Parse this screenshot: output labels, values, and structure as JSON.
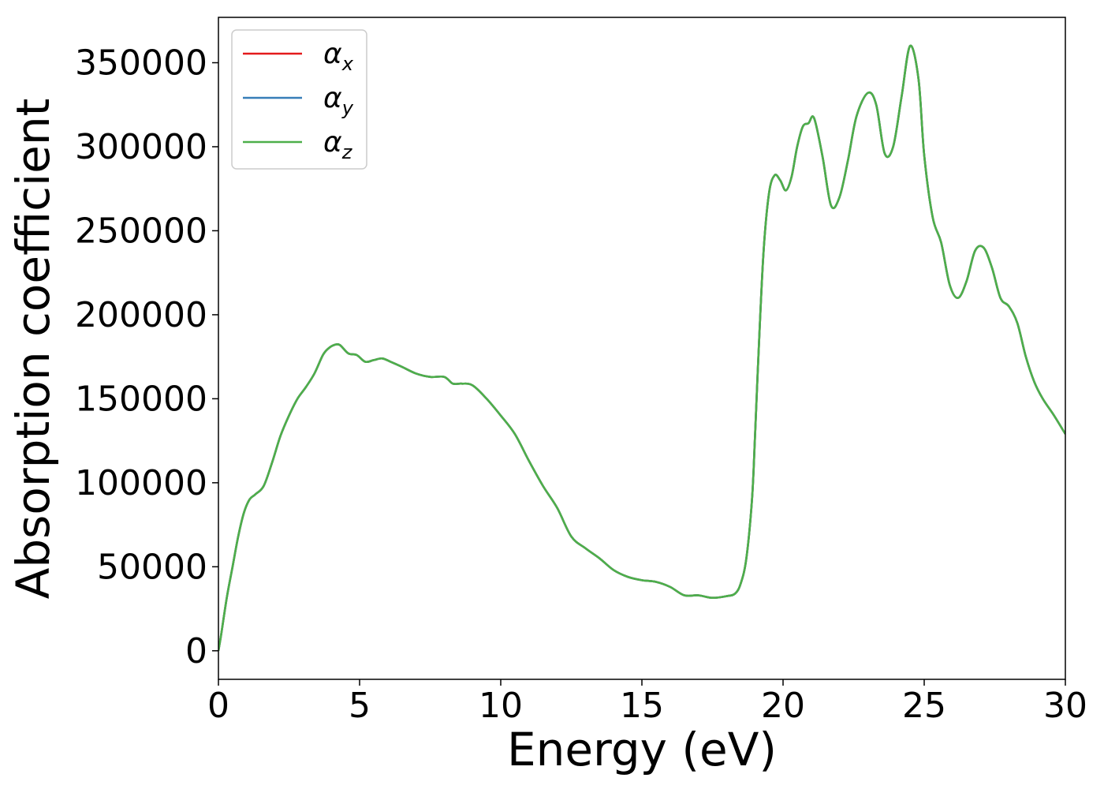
{
  "chart_data": {
    "type": "line",
    "xlabel": "Energy (eV)",
    "ylabel": "Absorption coefficient",
    "xlim": [
      0,
      30
    ],
    "ylim": [
      -17000,
      377000
    ],
    "xticks": [
      0,
      5,
      10,
      15,
      20,
      25,
      30
    ],
    "yticks": [
      0,
      50000,
      100000,
      150000,
      200000,
      250000,
      300000,
      350000
    ],
    "grid": false,
    "legend_position": "top-left",
    "x": [
      0,
      0.1,
      0.3,
      0.5,
      0.7,
      0.9,
      1.1,
      1.3,
      1.6,
      1.9,
      2.2,
      2.5,
      2.8,
      3.1,
      3.4,
      3.7,
      3.9,
      4.1,
      4.3,
      4.6,
      4.9,
      5.2,
      5.5,
      5.8,
      6.1,
      6.5,
      7.0,
      7.5,
      8.0,
      8.3,
      8.6,
      9.0,
      9.5,
      10.0,
      10.5,
      11.0,
      11.5,
      12.0,
      12.5,
      13.0,
      13.5,
      14.0,
      14.5,
      15.0,
      15.5,
      16.0,
      16.5,
      17.0,
      17.5,
      18.0,
      18.3,
      18.5,
      18.7,
      18.9,
      19.0,
      19.1,
      19.3,
      19.5,
      19.7,
      19.9,
      20.1,
      20.3,
      20.5,
      20.7,
      20.9,
      21.1,
      21.4,
      21.7,
      22.0,
      22.3,
      22.6,
      23.0,
      23.3,
      23.6,
      23.9,
      24.2,
      24.5,
      24.8,
      25.0,
      25.3,
      25.6,
      25.9,
      26.2,
      26.5,
      26.8,
      27.1,
      27.4,
      27.7,
      28.0,
      28.3,
      28.6,
      28.9,
      29.2,
      29.6,
      30.0
    ],
    "series": [
      {
        "name": "αx",
        "label_base": "α",
        "label_sub": "x",
        "color": "#e41a1c",
        "values": [
          0,
          10000,
          32000,
          50000,
          68000,
          82000,
          90000,
          93000,
          98000,
          112000,
          128000,
          140000,
          150000,
          157000,
          165000,
          176000,
          180000,
          182000,
          182000,
          177000,
          176000,
          172000,
          173000,
          174000,
          172000,
          169000,
          165000,
          163000,
          163000,
          159000,
          159000,
          158000,
          150000,
          140000,
          129000,
          113000,
          98000,
          85000,
          68000,
          61000,
          55000,
          48000,
          44000,
          42000,
          41000,
          38000,
          33000,
          33000,
          31500,
          32500,
          34000,
          40000,
          55000,
          90000,
          125000,
          165000,
          235000,
          272000,
          283000,
          280000,
          274000,
          282000,
          300000,
          312000,
          314000,
          317000,
          294000,
          265000,
          270000,
          292000,
          318000,
          332000,
          325000,
          296000,
          300000,
          330000,
          360000,
          340000,
          295000,
          258000,
          243000,
          218000,
          210000,
          220000,
          238000,
          240000,
          228000,
          210000,
          205000,
          195000,
          175000,
          160000,
          150000,
          140000,
          129000
        ]
      },
      {
        "name": "αy",
        "label_base": "α",
        "label_sub": "y",
        "color": "#377eb8",
        "values": [
          0,
          10000,
          32000,
          50000,
          68000,
          82000,
          90000,
          93000,
          98000,
          112000,
          128000,
          140000,
          150000,
          157000,
          165000,
          176000,
          180000,
          182000,
          182000,
          177000,
          176000,
          172000,
          173000,
          174000,
          172000,
          169000,
          165000,
          163000,
          163000,
          159000,
          159000,
          158000,
          150000,
          140000,
          129000,
          113000,
          98000,
          85000,
          68000,
          61000,
          55000,
          48000,
          44000,
          42000,
          41000,
          38000,
          33000,
          33000,
          31500,
          32500,
          34000,
          40000,
          55000,
          90000,
          125000,
          165000,
          235000,
          272000,
          283000,
          280000,
          274000,
          282000,
          300000,
          312000,
          314000,
          317000,
          294000,
          265000,
          270000,
          292000,
          318000,
          332000,
          325000,
          296000,
          300000,
          330000,
          360000,
          340000,
          295000,
          258000,
          243000,
          218000,
          210000,
          220000,
          238000,
          240000,
          228000,
          210000,
          205000,
          195000,
          175000,
          160000,
          150000,
          140000,
          129000
        ]
      },
      {
        "name": "αz",
        "label_base": "α",
        "label_sub": "z",
        "color": "#4daf4a",
        "values": [
          0,
          10000,
          32000,
          50000,
          68000,
          82000,
          90000,
          93000,
          98000,
          112000,
          128000,
          140000,
          150000,
          157000,
          165000,
          176000,
          180000,
          182000,
          182000,
          177000,
          176000,
          172000,
          173000,
          174000,
          172000,
          169000,
          165000,
          163000,
          163000,
          159000,
          159000,
          158000,
          150000,
          140000,
          129000,
          113000,
          98000,
          85000,
          68000,
          61000,
          55000,
          48000,
          44000,
          42000,
          41000,
          38000,
          33000,
          33000,
          31500,
          32500,
          34000,
          40000,
          55000,
          90000,
          125000,
          165000,
          235000,
          272000,
          283000,
          280000,
          274000,
          282000,
          300000,
          312000,
          314000,
          317000,
          294000,
          265000,
          270000,
          292000,
          318000,
          332000,
          325000,
          296000,
          300000,
          330000,
          360000,
          340000,
          295000,
          258000,
          243000,
          218000,
          210000,
          220000,
          238000,
          240000,
          228000,
          210000,
          205000,
          195000,
          175000,
          160000,
          150000,
          140000,
          129000
        ]
      }
    ]
  }
}
